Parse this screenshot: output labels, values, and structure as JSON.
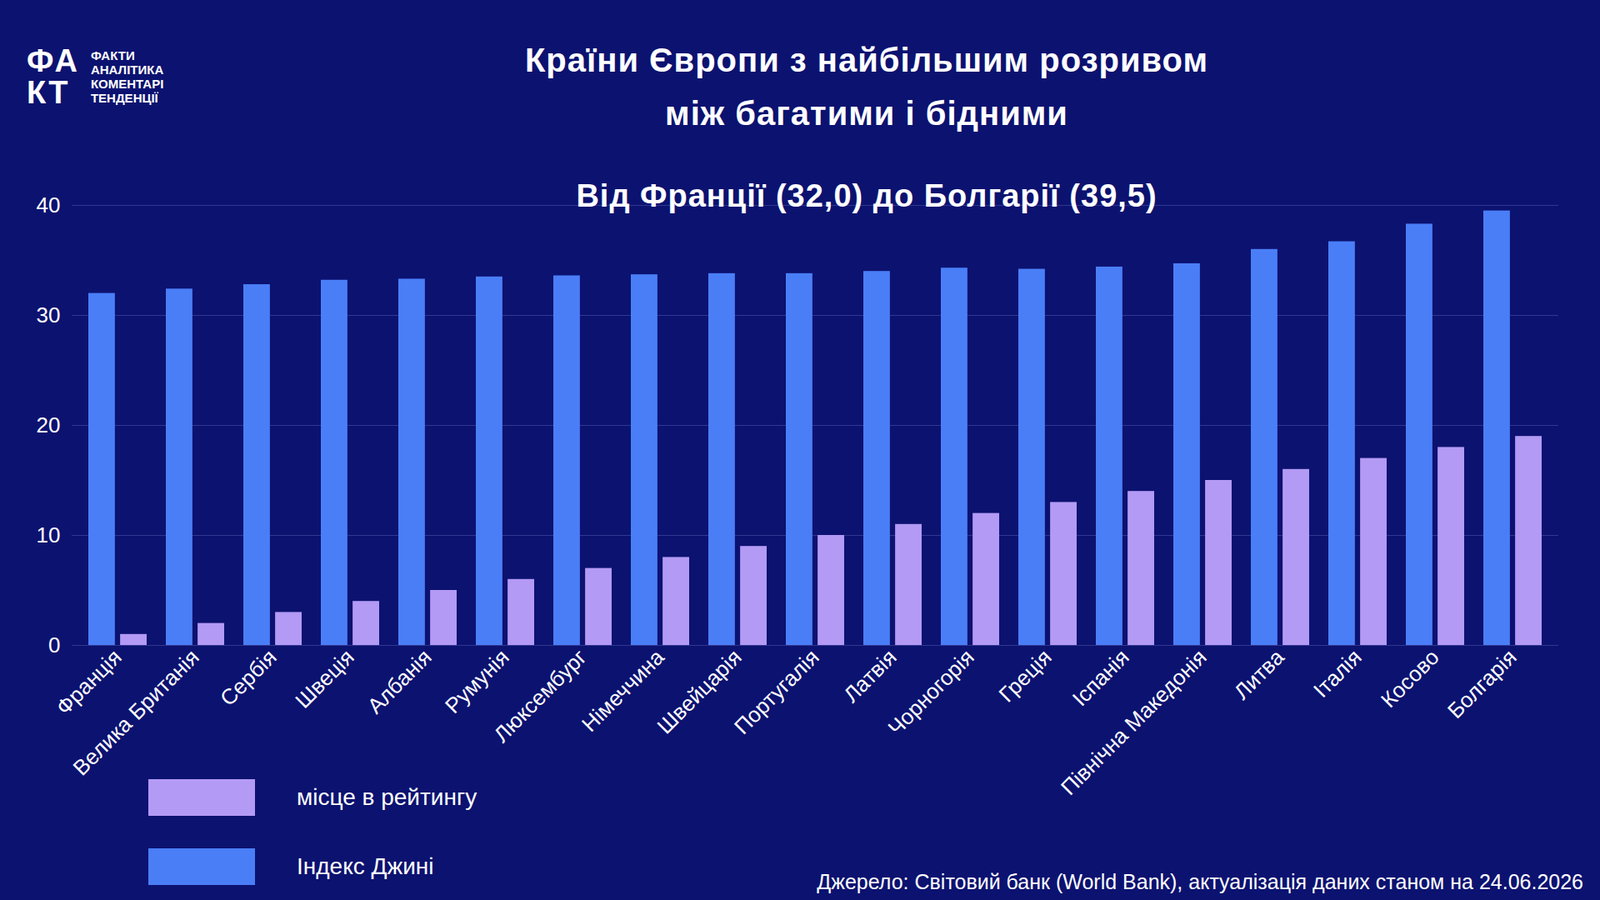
{
  "logo": {
    "mark": "ФАКТ",
    "lines": [
      "ФАКТИ",
      "АНАЛІТИКА",
      "КОМЕНТАРІ",
      "ТЕНДЕНЦІЇ"
    ]
  },
  "chart_data": {
    "type": "bar",
    "title": "Країни Європи з найбільшим розривом\nміж багатими і бідними",
    "subtitle": "Від Франції (32,0) до Болгарії (39,5)",
    "source": "Джерело: Світовий банк (World Bank), актуалізація даних станом на 24.06.2026",
    "categories": [
      "Франція",
      "Велика Британія",
      "Сербія",
      "Швеція",
      "Албанія",
      "Румунія",
      "Люксембург",
      "Німеччина",
      "Швейцарія",
      "Португалія",
      "Латвія",
      "Чорногорія",
      "Греція",
      "Іспанія",
      "Північна Македонія",
      "Литва",
      "Італія",
      "Косово",
      "Болгарія"
    ],
    "series": [
      {
        "name": "Індекс Джині",
        "color": "#4a7ef7",
        "values": [
          32.0,
          32.4,
          32.8,
          33.2,
          33.3,
          33.5,
          33.6,
          33.7,
          33.8,
          33.8,
          34.0,
          34.3,
          34.2,
          34.4,
          34.7,
          36.0,
          36.7,
          38.3,
          39.5
        ]
      },
      {
        "name": "місце в рейтингу",
        "color": "#b39af5",
        "values": [
          1,
          2,
          3,
          4,
          5,
          6,
          7,
          8,
          9,
          10,
          11,
          12,
          13,
          14,
          15,
          16,
          17,
          18,
          19
        ]
      }
    ],
    "ylim": [
      0,
      40
    ],
    "yticks": [
      0,
      10,
      20,
      30,
      40
    ],
    "grid": true,
    "legend": "bottom-left"
  }
}
